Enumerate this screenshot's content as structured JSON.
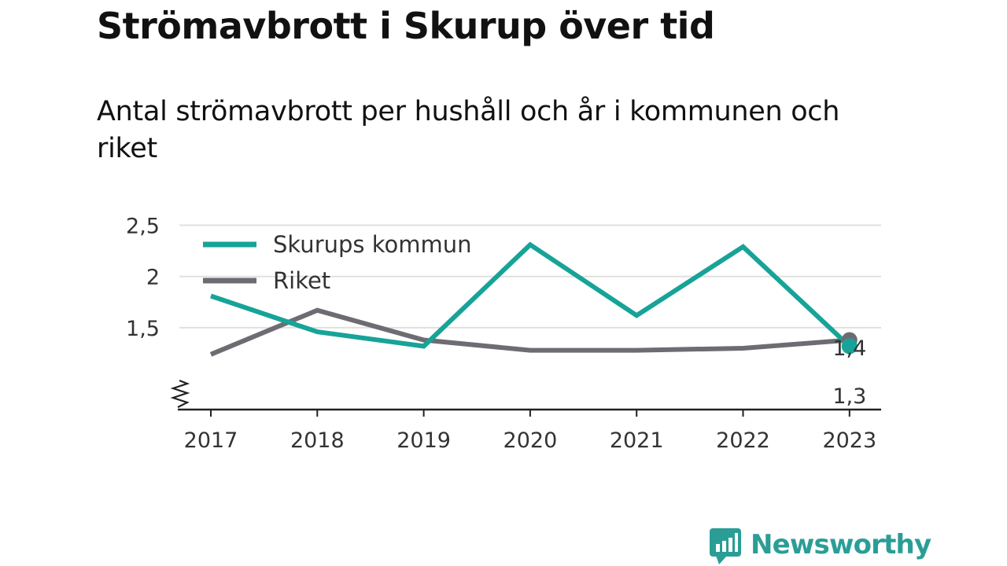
{
  "title": "Strömavbrott i Skurup över tid",
  "subtitle": "Antal strömavbrott per hushåll och år i kommunen och riket",
  "brand": {
    "name": "Newsworthy",
    "icon": "bar-chart-speech-bubble-icon",
    "color": "#2a9e96"
  },
  "chart_data": {
    "type": "line",
    "x": [
      "2017",
      "2018",
      "2019",
      "2020",
      "2021",
      "2022",
      "2023"
    ],
    "ylim": [
      1.2,
      2.5
    ],
    "y_axis_break": true,
    "yticks": [
      {
        "value": 1.5,
        "label": "1,5"
      },
      {
        "value": 2,
        "label": "2"
      },
      {
        "value": 2.5,
        "label": "2,5"
      }
    ],
    "grid": true,
    "legend_position": "top-left",
    "series": [
      {
        "name": "Skurups kommun",
        "color": "#17a398",
        "values": [
          1.81,
          1.46,
          1.32,
          2.31,
          1.62,
          2.29,
          1.32
        ],
        "end_label": "1,3"
      },
      {
        "name": "Riket",
        "color": "#6e6c72",
        "values": [
          1.24,
          1.67,
          1.38,
          1.28,
          1.28,
          1.3,
          1.38
        ],
        "end_label": "1,4"
      }
    ]
  }
}
